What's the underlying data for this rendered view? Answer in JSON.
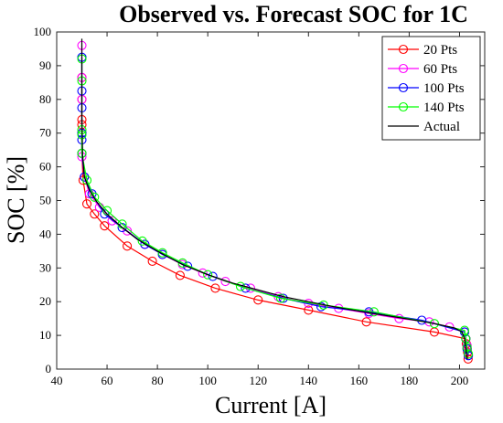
{
  "chart_data": {
    "type": "line",
    "title": "Observed vs. Forecast SOC for 1C",
    "xlabel": "Current [A]",
    "ylabel": "SOC [%]",
    "xlim": [
      40,
      210
    ],
    "ylim": [
      0,
      100
    ],
    "xticks": [
      40,
      60,
      80,
      100,
      120,
      140,
      160,
      180,
      200
    ],
    "yticks": [
      0,
      10,
      20,
      30,
      40,
      50,
      60,
      70,
      80,
      90,
      100
    ],
    "grid": false,
    "legend_position": "top-right",
    "series": [
      {
        "name": "20 Pts",
        "color": "#ff0000",
        "marker": "circle",
        "x": [
          50,
          50,
          50,
          50,
          50,
          50,
          50.5,
          52,
          55,
          59,
          68,
          78,
          89,
          103,
          120,
          140,
          163,
          190,
          202.5,
          202.7,
          203,
          203.2,
          203.4
        ],
        "y": [
          86.5,
          80,
          74,
          72.5,
          70,
          64,
          56,
          49,
          46,
          42.5,
          36.5,
          32,
          27.8,
          24,
          20.5,
          17.5,
          14,
          11,
          9,
          7.5,
          6,
          5,
          3
        ]
      },
      {
        "name": "60 Pts",
        "color": "#ff00ff",
        "marker": "circle",
        "x": [
          50,
          50,
          50,
          50,
          50,
          51,
          53,
          57,
          62,
          68,
          75,
          82,
          90,
          98,
          107,
          117,
          128,
          140,
          152,
          164,
          176,
          188,
          196,
          202,
          202.5,
          203,
          203.5
        ],
        "y": [
          96,
          86.5,
          80,
          70,
          63,
          57,
          52,
          48,
          44,
          41,
          37,
          34,
          31,
          28.5,
          26,
          24,
          21.5,
          19.5,
          18,
          16.5,
          15,
          14,
          12.5,
          11,
          9,
          7,
          4
        ]
      },
      {
        "name": "100 Pts",
        "color": "#0000ff",
        "marker": "circle",
        "x": [
          50,
          50,
          50,
          50,
          50,
          50,
          51,
          54,
          59,
          66,
          75,
          82,
          92,
          102,
          115,
          130,
          145,
          164,
          185,
          202,
          202.5,
          203,
          203.5
        ],
        "y": [
          92.5,
          82.5,
          77.5,
          70,
          68,
          64,
          57,
          52,
          46,
          42,
          37,
          34,
          30.5,
          27.5,
          24,
          21,
          18.5,
          17,
          14.5,
          11,
          9,
          6,
          4
        ]
      },
      {
        "name": "140 Pts",
        "color": "#00ff00",
        "marker": "circle",
        "x": [
          50,
          50,
          50,
          50,
          50,
          52,
          55,
          60,
          66,
          74,
          82,
          90,
          100,
          113,
          129,
          146,
          166,
          190,
          202,
          202.5,
          203,
          203.5
        ],
        "y": [
          92,
          85.5,
          71,
          69.5,
          64,
          56,
          51,
          47,
          43,
          38,
          34.5,
          31.5,
          28,
          24.5,
          21,
          19,
          17,
          13.5,
          11.5,
          9,
          6.5,
          4.5
        ]
      },
      {
        "name": "Actual",
        "color": "#000000",
        "marker": "none",
        "x": [
          50,
          50,
          50.3,
          51,
          53,
          56,
          60,
          66,
          72,
          80,
          90,
          100,
          110,
          120,
          130,
          140,
          150,
          160,
          170,
          180,
          190,
          198,
          201,
          202,
          202.5,
          203
        ],
        "y": [
          98,
          75,
          63,
          57,
          53,
          49.5,
          46,
          42,
          38.5,
          35,
          31,
          28,
          25.5,
          23.5,
          21.5,
          20,
          18.5,
          17.2,
          16,
          14.8,
          13.5,
          12.2,
          11,
          9,
          6,
          3
        ]
      }
    ]
  }
}
